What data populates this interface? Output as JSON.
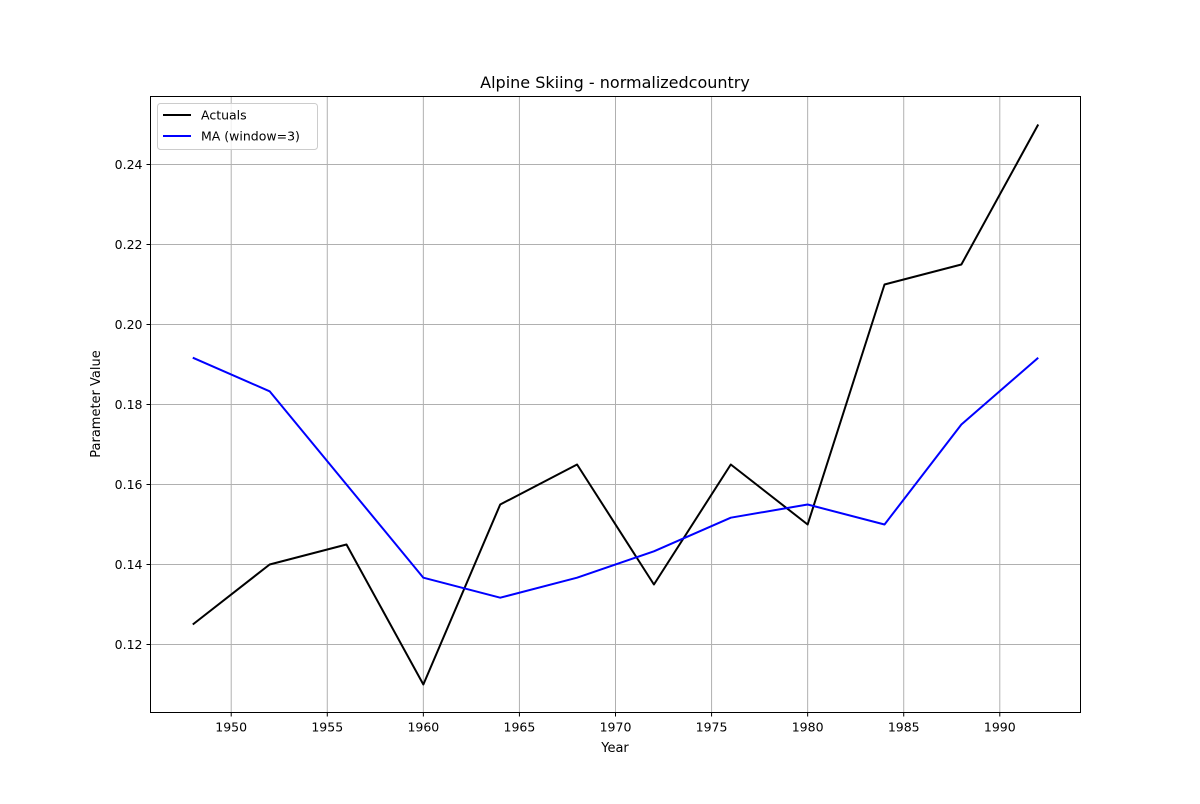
{
  "chart_data": {
    "type": "line",
    "title": "Alpine Skiing - normalizedcountry",
    "xlabel": "Year",
    "ylabel": "Parameter Value",
    "x": [
      1948,
      1952,
      1956,
      1960,
      1964,
      1968,
      1972,
      1976,
      1980,
      1984,
      1988,
      1992
    ],
    "series": [
      {
        "name": "Actuals",
        "color": "#000000",
        "values": [
          0.125,
          0.14,
          0.145,
          0.11,
          0.155,
          0.165,
          0.135,
          0.165,
          0.15,
          0.21,
          0.215,
          0.25
        ]
      },
      {
        "name": "MA (window=3)",
        "color": "#0000ff",
        "values": [
          0.1917,
          0.1833,
          0.16,
          0.1367,
          0.1317,
          0.1367,
          0.1433,
          0.1517,
          0.155,
          0.15,
          0.175,
          0.1917
        ]
      }
    ],
    "xticks": [
      1950,
      1955,
      1960,
      1965,
      1970,
      1975,
      1980,
      1985,
      1990
    ],
    "yticks": [
      0.12,
      0.14,
      0.16,
      0.18,
      0.2,
      0.22,
      0.24
    ],
    "ytick_labels": [
      "0.12",
      "0.14",
      "0.16",
      "0.18",
      "0.20",
      "0.22",
      "0.24"
    ],
    "xlim": [
      1945.8,
      1994.2
    ],
    "ylim": [
      0.103,
      0.257
    ],
    "grid": true,
    "legend_position": "top-left"
  }
}
